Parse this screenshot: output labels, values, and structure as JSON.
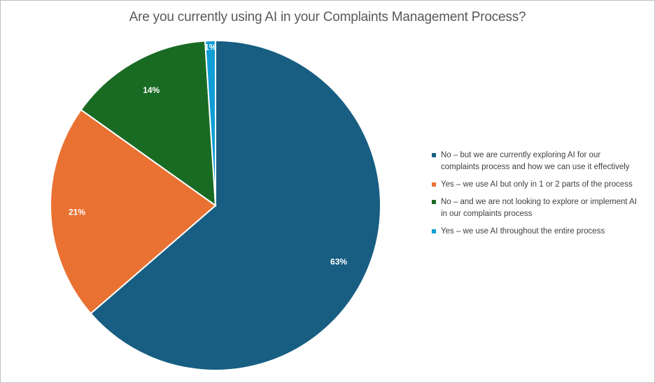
{
  "chart_data": {
    "type": "pie",
    "title": "Are you currently using AI in your Complaints Management Process?",
    "legend_position": "right",
    "slices": [
      {
        "label": "No – but we are currently exploring AI for our complaints process and how we can use it effectively",
        "value": 63,
        "display": "63%",
        "color": "#175E82"
      },
      {
        "label": "Yes – we use AI but only in 1 or 2 parts of the process",
        "value": 21,
        "display": "21%",
        "color": "#E97132"
      },
      {
        "label": "No – and we are not looking to explore or implement AI in our complaints process",
        "value": 14,
        "display": "14%",
        "color": "#196B24"
      },
      {
        "label": "Yes – we use AI throughout the entire process",
        "value": 1,
        "display": "1%",
        "color": "#0F9ED5"
      }
    ]
  }
}
